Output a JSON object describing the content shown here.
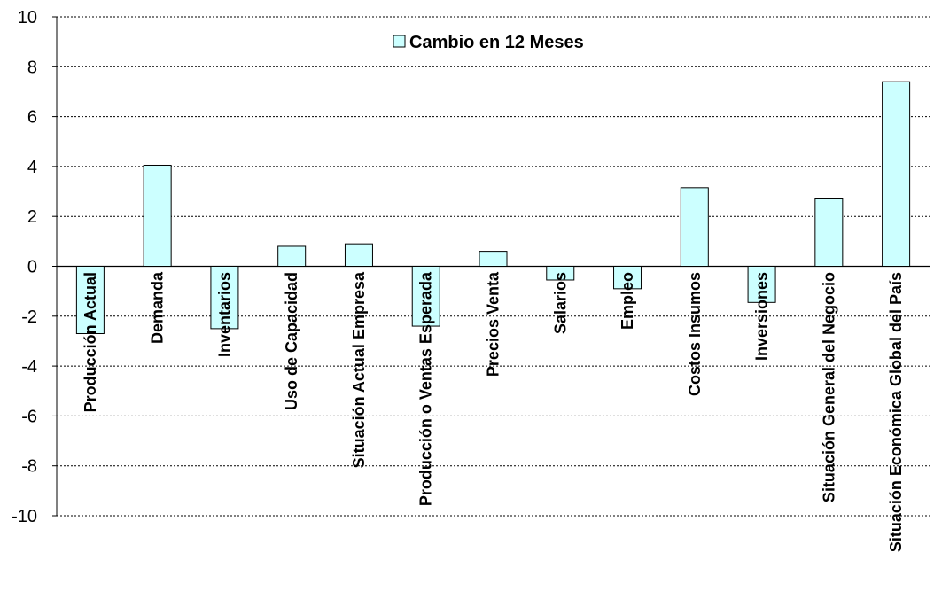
{
  "chart_data": {
    "type": "bar",
    "categories": [
      "Producción Actual",
      "Demanda",
      "Inventarios",
      "Uso de Capacidad",
      "Situación Actual Empresa",
      "Producción o Ventas Esperada",
      "Precios Venta",
      "Salarios",
      "Empleo",
      "Costos Insumos",
      "Inversiones",
      "Situación General del Negocio",
      "Situación Económica Global del País"
    ],
    "series": [
      {
        "name": "Cambio en 12 Meses",
        "values": [
          -2.7,
          4.05,
          -2.5,
          0.8,
          0.9,
          -2.4,
          0.6,
          -0.55,
          -0.9,
          3.15,
          -1.45,
          2.7,
          7.4
        ]
      }
    ],
    "ylim": [
      -10,
      10
    ],
    "yticks": [
      "10",
      "8",
      "6",
      "4",
      "2",
      "0",
      "-2",
      "-4",
      "-6",
      "-8",
      "-10"
    ],
    "grid": true,
    "legend_position": "top-center",
    "colors": {
      "bar_fill": "#CCFFFF",
      "bar_stroke": "#000000",
      "grid": "#000000"
    }
  }
}
